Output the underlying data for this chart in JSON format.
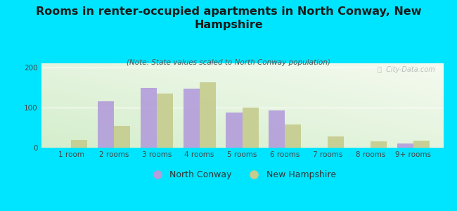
{
  "categories": [
    "1 room",
    "2 rooms",
    "3 rooms",
    "4 rooms",
    "5 rooms",
    "6 rooms",
    "7 rooms",
    "8 rooms",
    "9+ rooms"
  ],
  "north_conway": [
    0,
    115,
    148,
    147,
    87,
    93,
    0,
    0,
    10
  ],
  "new_hampshire": [
    20,
    55,
    135,
    163,
    100,
    57,
    28,
    15,
    17
  ],
  "nc_color": "#b39ddb",
  "nh_color": "#c5cc8e",
  "title": "Rooms in renter-occupied apartments in North Conway, New\nHampshire",
  "subtitle": "(Note: State values scaled to North Conway population)",
  "ylabel_ticks": [
    0,
    100,
    200
  ],
  "ylim": [
    0,
    210
  ],
  "bg_outer": "#00e5ff",
  "watermark": "ⓘ  City-Data.com",
  "legend_nc": "North Conway",
  "legend_nh": "New Hampshire",
  "bar_width": 0.38,
  "title_fontsize": 11.5,
  "subtitle_fontsize": 7.5,
  "tick_fontsize": 7.5,
  "legend_fontsize": 9
}
